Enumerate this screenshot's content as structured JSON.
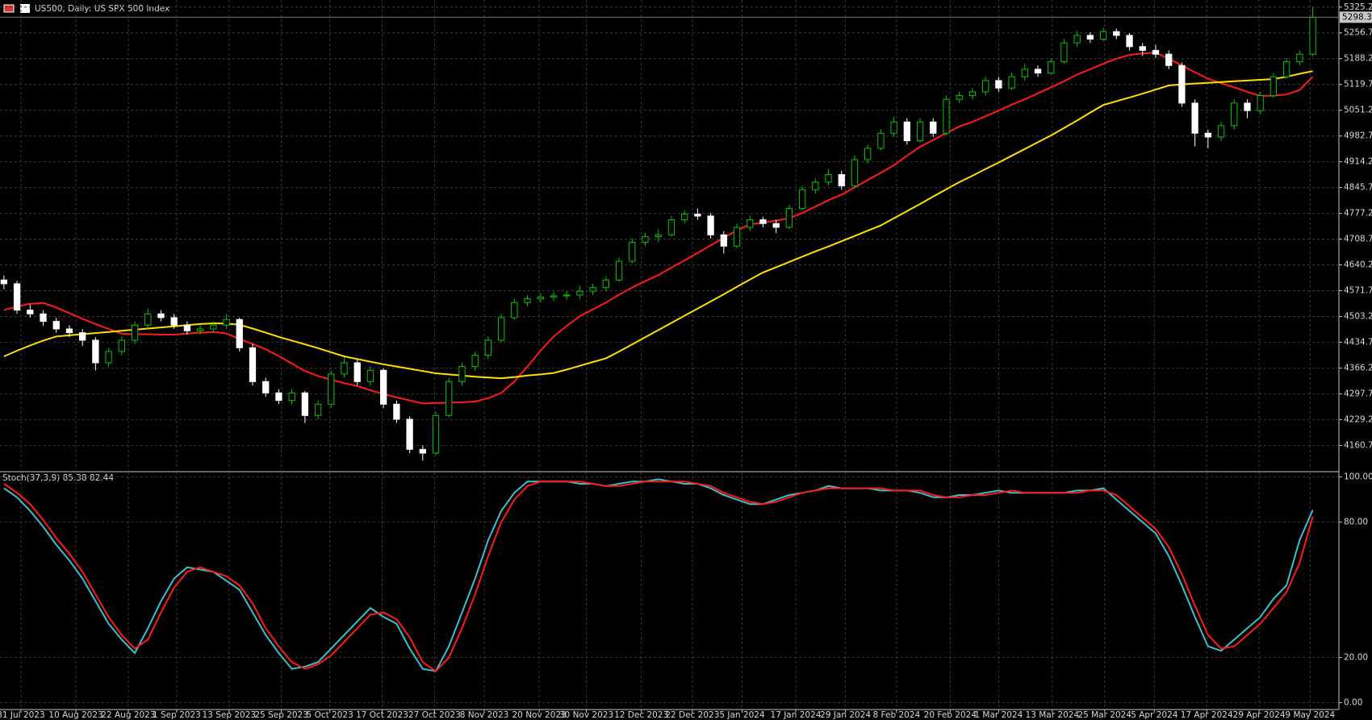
{
  "chart_data": [
    {
      "type": "candlestick",
      "title": "US500, Daily:  US SPX 500 Index",
      "up_color": "#000000",
      "up_edge": "#00c800",
      "down_color": "#ffffff",
      "down_edge": "#ffffff",
      "candles": [
        [
          4600,
          4612,
          4575,
          4590
        ],
        [
          4590,
          4598,
          4510,
          4520
        ],
        [
          4520,
          4535,
          4500,
          4510
        ],
        [
          4510,
          4520,
          4478,
          4490
        ],
        [
          4490,
          4500,
          4460,
          4470
        ],
        [
          4470,
          4480,
          4448,
          4460
        ],
        [
          4460,
          4470,
          4425,
          4440
        ],
        [
          4440,
          4448,
          4360,
          4380
        ],
        [
          4380,
          4420,
          4370,
          4410
        ],
        [
          4410,
          4450,
          4400,
          4440
        ],
        [
          4440,
          4490,
          4430,
          4480
        ],
        [
          4480,
          4525,
          4470,
          4510
        ],
        [
          4510,
          4520,
          4490,
          4500
        ],
        [
          4500,
          4510,
          4470,
          4480
        ],
        [
          4480,
          4490,
          4455,
          4465
        ],
        [
          4465,
          4480,
          4455,
          4470
        ],
        [
          4470,
          4490,
          4460,
          4480
        ],
        [
          4480,
          4510,
          4470,
          4495
        ],
        [
          4495,
          4500,
          4410,
          4420
        ],
        [
          4420,
          4430,
          4320,
          4330
        ],
        [
          4330,
          4340,
          4290,
          4300
        ],
        [
          4300,
          4310,
          4270,
          4280
        ],
        [
          4280,
          4310,
          4270,
          4300
        ],
        [
          4300,
          4305,
          4220,
          4240
        ],
        [
          4240,
          4280,
          4230,
          4270
        ],
        [
          4270,
          4360,
          4260,
          4350
        ],
        [
          4350,
          4395,
          4340,
          4380
        ],
        [
          4380,
          4390,
          4320,
          4330
        ],
        [
          4330,
          4370,
          4320,
          4360
        ],
        [
          4360,
          4365,
          4260,
          4270
        ],
        [
          4270,
          4280,
          4220,
          4230
        ],
        [
          4230,
          4238,
          4140,
          4150
        ],
        [
          4150,
          4160,
          4120,
          4140
        ],
        [
          4140,
          4250,
          4135,
          4240
        ],
        [
          4240,
          4340,
          4235,
          4330
        ],
        [
          4330,
          4380,
          4320,
          4370
        ],
        [
          4370,
          4410,
          4360,
          4400
        ],
        [
          4400,
          4450,
          4390,
          4440
        ],
        [
          4440,
          4510,
          4435,
          4500
        ],
        [
          4500,
          4550,
          4495,
          4540
        ],
        [
          4540,
          4560,
          4530,
          4550
        ],
        [
          4550,
          4565,
          4540,
          4555
        ],
        [
          4555,
          4568,
          4545,
          4558
        ],
        [
          4558,
          4570,
          4548,
          4560
        ],
        [
          4560,
          4585,
          4550,
          4570
        ],
        [
          4570,
          4590,
          4560,
          4580
        ],
        [
          4580,
          4610,
          4570,
          4600
        ],
        [
          4600,
          4660,
          4595,
          4650
        ],
        [
          4650,
          4710,
          4645,
          4700
        ],
        [
          4700,
          4725,
          4690,
          4715
        ],
        [
          4715,
          4735,
          4700,
          4720
        ],
        [
          4720,
          4770,
          4715,
          4760
        ],
        [
          4760,
          4785,
          4750,
          4775
        ],
        [
          4775,
          4790,
          4760,
          4770
        ],
        [
          4770,
          4778,
          4710,
          4720
        ],
        [
          4720,
          4730,
          4670,
          4690
        ],
        [
          4690,
          4750,
          4685,
          4740
        ],
        [
          4740,
          4770,
          4730,
          4760
        ],
        [
          4760,
          4768,
          4740,
          4750
        ],
        [
          4750,
          4760,
          4725,
          4740
        ],
        [
          4740,
          4800,
          4735,
          4790
        ],
        [
          4790,
          4850,
          4785,
          4840
        ],
        [
          4840,
          4870,
          4830,
          4860
        ],
        [
          4860,
          4895,
          4850,
          4880
        ],
        [
          4880,
          4890,
          4840,
          4850
        ],
        [
          4850,
          4930,
          4845,
          4920
        ],
        [
          4920,
          4960,
          4910,
          4950
        ],
        [
          4950,
          5000,
          4945,
          4990
        ],
        [
          4990,
          5035,
          4980,
          5020
        ],
        [
          5020,
          5030,
          4960,
          4970
        ],
        [
          4970,
          5030,
          4965,
          5020
        ],
        [
          5020,
          5030,
          4980,
          4990
        ],
        [
          4990,
          5090,
          4985,
          5080
        ],
        [
          5080,
          5100,
          5070,
          5090
        ],
        [
          5090,
          5110,
          5080,
          5100
        ],
        [
          5100,
          5140,
          5090,
          5130
        ],
        [
          5130,
          5140,
          5100,
          5110
        ],
        [
          5110,
          5150,
          5105,
          5140
        ],
        [
          5140,
          5175,
          5130,
          5160
        ],
        [
          5160,
          5170,
          5140,
          5150
        ],
        [
          5150,
          5190,
          5145,
          5180
        ],
        [
          5180,
          5240,
          5175,
          5230
        ],
        [
          5230,
          5262,
          5220,
          5250
        ],
        [
          5250,
          5258,
          5230,
          5240
        ],
        [
          5240,
          5270,
          5235,
          5260
        ],
        [
          5260,
          5268,
          5240,
          5250
        ],
        [
          5250,
          5256,
          5210,
          5220
        ],
        [
          5220,
          5230,
          5195,
          5210
        ],
        [
          5210,
          5225,
          5190,
          5200
        ],
        [
          5200,
          5210,
          5160,
          5170
        ],
        [
          5170,
          5178,
          5060,
          5070
        ],
        [
          5070,
          5080,
          4955,
          4990
        ],
        [
          4990,
          5000,
          4950,
          4980
        ],
        [
          4980,
          5020,
          4970,
          5010
        ],
        [
          5010,
          5080,
          5000,
          5070
        ],
        [
          5070,
          5080,
          5030,
          5050
        ],
        [
          5050,
          5100,
          5040,
          5090
        ],
        [
          5090,
          5150,
          5085,
          5140
        ],
        [
          5140,
          5190,
          5135,
          5180
        ],
        [
          5180,
          5210,
          5170,
          5200
        ],
        [
          5200,
          5325,
          5195,
          5298.3
        ]
      ],
      "series": [
        {
          "color": "#ff1a1a",
          "values": [
            4520,
            4530,
            4537,
            4539,
            4527,
            4512,
            4497,
            4483,
            4470,
            4457,
            4456,
            4456,
            4455,
            4455,
            4458,
            4460,
            4462,
            4458,
            4443,
            4430,
            4416,
            4398,
            4378,
            4358,
            4345,
            4335,
            4326,
            4318,
            4307,
            4297,
            4288,
            4280,
            4272,
            4273,
            4274,
            4275,
            4277,
            4286,
            4300,
            4330,
            4370,
            4412,
            4450,
            4478,
            4504,
            4522,
            4540,
            4561,
            4580,
            4597,
            4613,
            4633,
            4652,
            4672,
            4692,
            4712,
            4732,
            4748,
            4752,
            4758,
            4764,
            4778,
            4795,
            4812,
            4827,
            4846,
            4866,
            4885,
            4905,
            4930,
            4954,
            4972,
            4990,
            5008,
            5020,
            5035,
            5050,
            5066,
            5080,
            5096,
            5112,
            5128,
            5146,
            5160,
            5175,
            5188,
            5198,
            5202,
            5204,
            5188,
            5170,
            5152,
            5135,
            5123,
            5112,
            5100,
            5089,
            5090,
            5093,
            5105,
            5140
          ]
        },
        {
          "color": "#ffe000",
          "values": [
            4397,
            4412,
            4426,
            4439,
            4450,
            4453,
            4456,
            4459,
            4462,
            4465,
            4468,
            4471,
            4474,
            4477,
            4480,
            4483,
            4485,
            4484,
            4481,
            4471,
            4460,
            4449,
            4439,
            4429,
            4419,
            4408,
            4397,
            4390,
            4383,
            4376,
            4370,
            4364,
            4358,
            4352,
            4349,
            4346,
            4343,
            4341,
            4339,
            4342,
            4346,
            4349,
            4353,
            4362,
            4372,
            4382,
            4392,
            4410,
            4429,
            4448,
            4467,
            4486,
            4505,
            4524,
            4543,
            4562,
            4582,
            4601,
            4620,
            4634,
            4648,
            4662,
            4676,
            4689,
            4703,
            4717,
            4731,
            4745,
            4764,
            4783,
            4802,
            4822,
            4841,
            4860,
            4877,
            4895,
            4912,
            4930,
            4948,
            4966,
            4984,
            5004,
            5024,
            5045,
            5065,
            5075,
            5085,
            5095,
            5106,
            5117,
            5120,
            5122,
            5124,
            5126,
            5128,
            5130,
            5132,
            5134,
            5140,
            5148,
            5155
          ]
        }
      ],
      "ylim": [
        4095,
        5344
      ],
      "yticks": [
        4160.7,
        4229.2,
        4297.7,
        4366.2,
        4434.7,
        4503.2,
        4571.7,
        4640.2,
        4708.7,
        4777.2,
        4845.7,
        4914.2,
        4982.7,
        5051.2,
        5119.7,
        5188.2,
        5256.7,
        5325.2
      ],
      "xlim": [
        -0.3,
        102
      ],
      "xticks": [
        {
          "value": 1.3,
          "label": "31 Jul 2023"
        },
        {
          "value": 5.5,
          "label": "10 Aug 2023"
        },
        {
          "value": 9.5,
          "label": "22 Aug 2023"
        },
        {
          "value": 13.2,
          "label": "1 Sep 2023"
        },
        {
          "value": 17.2,
          "label": "13 Sep 2023"
        },
        {
          "value": 21.2,
          "label": "25 Sep 2023"
        },
        {
          "value": 24.9,
          "label": "5 Oct 2023"
        },
        {
          "value": 28.9,
          "label": "17 Oct 2023"
        },
        {
          "value": 32.9,
          "label": "27 Oct 2023"
        },
        {
          "value": 36.7,
          "label": "8 Nov 2023"
        },
        {
          "value": 40.9,
          "label": "20 Nov 2023"
        },
        {
          "value": 44.5,
          "label": "30 Nov 2023"
        },
        {
          "value": 48.7,
          "label": "12 Dec 2023"
        },
        {
          "value": 52.6,
          "label": "22 Dec 2023"
        },
        {
          "value": 56.4,
          "label": "5 Jan 2024"
        },
        {
          "value": 60.5,
          "label": "17 Jan 2024"
        },
        {
          "value": 64.3,
          "label": "29 Jan 2024"
        },
        {
          "value": 68.2,
          "label": "8 Feb 2024"
        },
        {
          "value": 72.3,
          "label": "20 Feb 2024"
        },
        {
          "value": 76,
          "label": "1 Mar 2024"
        },
        {
          "value": 80.1,
          "label": "13 Mar 2024"
        },
        {
          "value": 84.1,
          "label": "25 Mar 2024"
        },
        {
          "value": 87.9,
          "label": "5 Apr 2024"
        },
        {
          "value": 91.9,
          "label": "17 Apr 2024"
        },
        {
          "value": 95.9,
          "label": "29 Apr 2024"
        },
        {
          "value": 99.8,
          "label": "9 May 2024"
        }
      ],
      "grid": true
    },
    {
      "type": "line",
      "title": "Stoch(37,3,9)",
      "series": [
        {
          "color": "#3cbfd0",
          "values": [
            95,
            91,
            85,
            78,
            70,
            63,
            55,
            45,
            35,
            28,
            22,
            33,
            45,
            55,
            60,
            59,
            58,
            54,
            50,
            40,
            30,
            22,
            15,
            16,
            18,
            24,
            30,
            36,
            42,
            38,
            35,
            24,
            15,
            14,
            25,
            40,
            55,
            72,
            85,
            93,
            98,
            98,
            98,
            98,
            97,
            97,
            96,
            97,
            98,
            98,
            99,
            98,
            97,
            97,
            95,
            92,
            90,
            88,
            88,
            90,
            92,
            93,
            94,
            96,
            95,
            95,
            95,
            94,
            94,
            94,
            93,
            91,
            91,
            92,
            92,
            93,
            94,
            93,
            93,
            93,
            93,
            93,
            94,
            94,
            95,
            90,
            85,
            80,
            75,
            65,
            52,
            38,
            25,
            23,
            28,
            33,
            38,
            46,
            52,
            72,
            85.38
          ]
        },
        {
          "color": "#ff1a1a",
          "values": [
            97,
            93,
            88,
            81,
            73,
            66,
            58,
            48,
            38,
            30,
            24,
            28,
            40,
            51,
            58,
            60,
            58,
            56,
            52,
            44,
            33,
            25,
            18,
            15,
            17,
            21,
            27,
            33,
            39,
            40,
            37,
            29,
            18,
            14,
            20,
            33,
            48,
            65,
            80,
            90,
            96,
            98,
            98,
            98,
            98,
            97,
            96,
            96,
            97,
            98,
            98,
            98,
            98,
            97,
            96,
            93,
            91,
            89,
            88,
            89,
            91,
            93,
            94,
            95,
            95,
            95,
            95,
            95,
            94,
            94,
            94,
            92,
            91,
            91,
            92,
            92,
            93,
            94,
            93,
            93,
            93,
            93,
            93,
            94,
            94,
            92,
            87,
            82,
            77,
            69,
            57,
            43,
            30,
            24,
            25,
            30,
            35,
            42,
            49,
            62,
            82.44
          ]
        }
      ],
      "ylim": [
        -3,
        102
      ],
      "yticks": [
        {
          "value": 0,
          "label": "0.00"
        },
        {
          "value": 20,
          "label": "20.00"
        },
        {
          "value": 80,
          "label": "80.00"
        },
        {
          "value": 100,
          "label": "100.00"
        }
      ],
      "grid": true
    }
  ]
}
